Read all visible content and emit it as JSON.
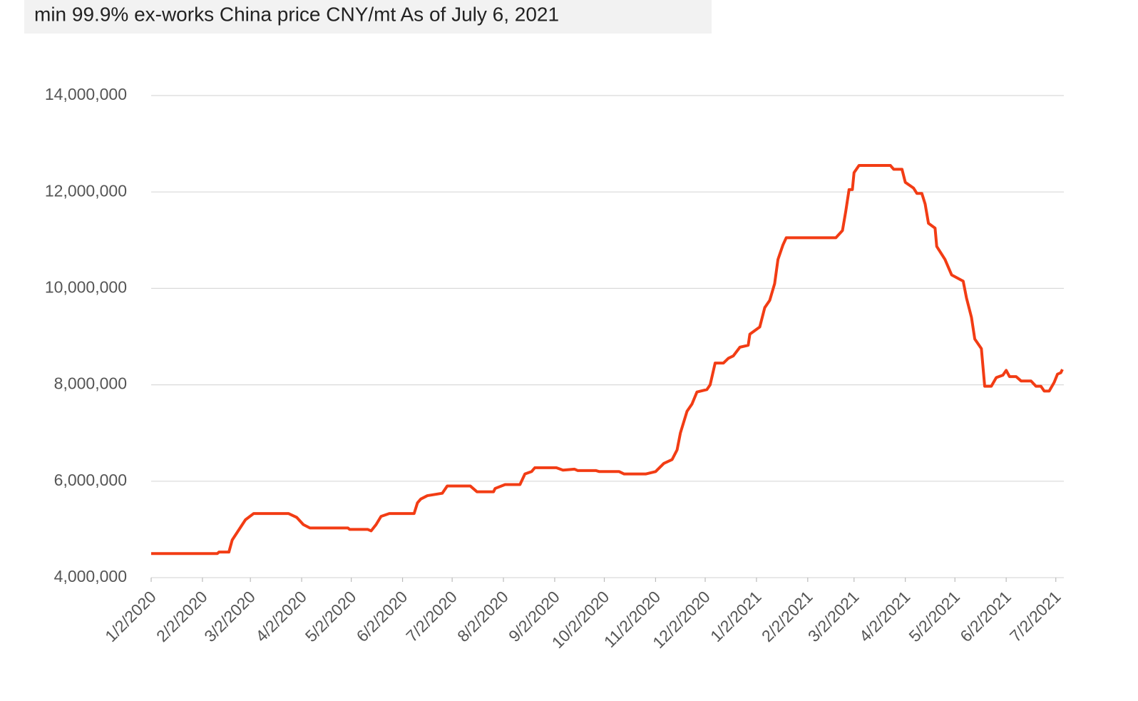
{
  "chart_data": {
    "type": "line",
    "title": "min 99.9%   ex-works China price   CNY/mt   As of July 6, 2021",
    "x": [
      "1/2/2020",
      "2/11/2020",
      "2/12/2020",
      "2/18/2020",
      "2/20/2020",
      "2/28/2020",
      "3/4/2020",
      "3/25/2020",
      "3/30/2020",
      "4/3/2020",
      "4/7/2020",
      "4/30/2020",
      "5/1/2020",
      "5/12/2020",
      "5/14/2020",
      "5/17/2020",
      "5/20/2020",
      "5/25/2020",
      "6/9/2020",
      "6/11/2020",
      "6/13/2020",
      "6/17/2020",
      "6/26/2020",
      "6/29/2020",
      "7/13/2020",
      "7/17/2020",
      "7/27/2020",
      "7/28/2020",
      "8/3/2020",
      "8/12/2020",
      "8/15/2020",
      "8/19/2020",
      "8/21/2020",
      "9/3/2020",
      "9/7/2020",
      "9/14/2020",
      "9/16/2020",
      "9/27/2020",
      "9/29/2020",
      "10/11/2020",
      "10/14/2020",
      "10/27/2020",
      "11/2/2020",
      "11/7/2020",
      "11/12/2020",
      "11/15/2020",
      "11/17/2020",
      "11/21/2020",
      "11/24/2020",
      "11/27/2020",
      "12/3/2020",
      "12/5/2020",
      "12/8/2020",
      "12/13/2020",
      "12/16/2020",
      "12/19/2020",
      "12/23/2020",
      "12/28/2020",
      "12/29/2020",
      "1/4/2021",
      "1/7/2021",
      "1/10/2021",
      "1/13/2021",
      "1/15/2021",
      "1/18/2021",
      "1/20/2021",
      "2/19/2021",
      "2/23/2021",
      "2/25/2021",
      "2/27/2021",
      "3/1/2021",
      "3/2/2021",
      "3/5/2021",
      "3/24/2021",
      "3/26/2021",
      "3/31/2021",
      "4/2/2021",
      "4/7/2021",
      "4/9/2021",
      "4/12/2021",
      "4/14/2021",
      "4/16/2021",
      "4/20/2021",
      "4/21/2021",
      "4/26/2021",
      "4/30/2021",
      "5/7/2021",
      "5/9/2021",
      "5/12/2021",
      "5/14/2021",
      "5/18/2021",
      "5/20/2021",
      "5/24/2021",
      "5/27/2021",
      "5/31/2021",
      "6/2/2021",
      "6/4/2021",
      "6/8/2021",
      "6/11/2021",
      "6/17/2021",
      "6/20/2021",
      "6/23/2021",
      "6/25/2021",
      "6/28/2021",
      "7/1/2021",
      "7/3/2021",
      "7/5/2021",
      "7/6/2021"
    ],
    "series": [
      {
        "name": "min 99.9% ex-works China price",
        "color": "#f23c14",
        "values": [
          4500000,
          4500000,
          4530000,
          4530000,
          4780000,
          5200000,
          5330000,
          5330000,
          5250000,
          5100000,
          5030000,
          5030000,
          5000000,
          5000000,
          4970000,
          5100000,
          5270000,
          5330000,
          5330000,
          5550000,
          5630000,
          5700000,
          5750000,
          5900000,
          5900000,
          5780000,
          5780000,
          5850000,
          5930000,
          5930000,
          6150000,
          6200000,
          6280000,
          6280000,
          6230000,
          6250000,
          6220000,
          6220000,
          6200000,
          6200000,
          6150000,
          6150000,
          6200000,
          6370000,
          6450000,
          6650000,
          7000000,
          7450000,
          7600000,
          7850000,
          7900000,
          8000000,
          8450000,
          8450000,
          8550000,
          8600000,
          8780000,
          8820000,
          9050000,
          9200000,
          9600000,
          9750000,
          10100000,
          10600000,
          10900000,
          11050000,
          11050000,
          11200000,
          11600000,
          12050000,
          12050000,
          12400000,
          12550000,
          12550000,
          12470000,
          12470000,
          12200000,
          12080000,
          11970000,
          11970000,
          11750000,
          11350000,
          11250000,
          10870000,
          10600000,
          10280000,
          10150000,
          9800000,
          9400000,
          8950000,
          8750000,
          7970000,
          7970000,
          8150000,
          8200000,
          8300000,
          8170000,
          8170000,
          8080000,
          8080000,
          7970000,
          7970000,
          7870000,
          7870000,
          8050000,
          8220000,
          8250000,
          8320000
        ]
      }
    ],
    "xlim": [
      "1/2/2020",
      "7/6/2021"
    ],
    "xticks": [
      "1/2/2020",
      "2/2/2020",
      "3/2/2020",
      "4/2/2020",
      "5/2/2020",
      "6/2/2020",
      "7/2/2020",
      "8/2/2020",
      "9/2/2020",
      "10/2/2020",
      "11/2/2020",
      "12/2/2020",
      "1/2/2021",
      "2/2/2021",
      "3/2/2021",
      "4/2/2021",
      "5/2/2021",
      "6/2/2021",
      "7/2/2021"
    ],
    "ylim": [
      4000000,
      14000000
    ],
    "yticks": [
      {
        "value": 4000000,
        "label": "4,000,000"
      },
      {
        "value": 6000000,
        "label": "6,000,000"
      },
      {
        "value": 8000000,
        "label": "8,000,000"
      },
      {
        "value": 10000000,
        "label": "10,000,000"
      },
      {
        "value": 12000000,
        "label": "12,000,000"
      },
      {
        "value": 14000000,
        "label": "14,000,000"
      }
    ],
    "grid": true
  }
}
